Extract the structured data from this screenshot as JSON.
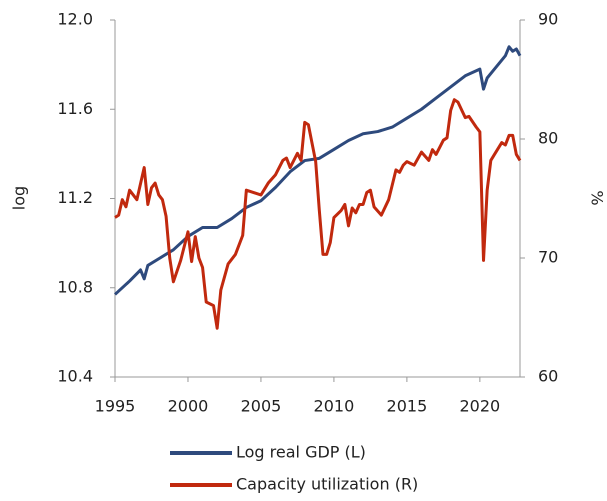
{
  "chart_data": {
    "type": "line",
    "y_label": "log",
    "y2_label": "%",
    "xlim": [
      1995,
      2022.75
    ],
    "xticks": [
      1995,
      2000,
      2005,
      2010,
      2015,
      2020
    ],
    "ylim": [
      10.4,
      12
    ],
    "yticks": [
      {
        "value": 10.4,
        "label": "10.4"
      },
      10.8,
      11.2,
      11.6,
      {
        "value": 12,
        "label": "12.0"
      }
    ],
    "y2lim": [
      60,
      90
    ],
    "y2ticks": [
      60,
      70,
      80,
      90
    ],
    "series": [
      {
        "name": "Log real GDP (L)",
        "color": "#2e4a7d",
        "axis": "y",
        "x": [
          1995,
          1996,
          1996.75,
          1997,
          1997.25,
          1998,
          1999,
          2000,
          2001,
          2002,
          2003,
          2004,
          2005,
          2006,
          2007,
          2008,
          2009,
          2010,
          2011,
          2012,
          2013,
          2014,
          2015,
          2016,
          2017,
          2018,
          2019,
          2020,
          2020.25,
          2020.5,
          2021,
          2021.75,
          2022,
          2022.25,
          2022.5,
          2022.75
        ],
        "values": [
          10.77,
          10.83,
          10.88,
          10.84,
          10.9,
          10.93,
          10.97,
          11.03,
          11.07,
          11.07,
          11.11,
          11.16,
          11.19,
          11.25,
          11.32,
          11.37,
          11.38,
          11.42,
          11.46,
          11.49,
          11.5,
          11.52,
          11.56,
          11.6,
          11.65,
          11.7,
          11.75,
          11.78,
          11.69,
          11.74,
          11.78,
          11.84,
          11.88,
          11.86,
          11.87,
          11.84
        ]
      },
      {
        "name": "Capacity utilization (R)",
        "color": "#c1290e",
        "axis": "y2",
        "x": [
          1995,
          1995.25,
          1995.5,
          1995.75,
          1996,
          1996.5,
          1997,
          1997.25,
          1997.5,
          1997.75,
          1998,
          1998.25,
          1998.5,
          1998.75,
          1999,
          1999.5,
          2000,
          2000.25,
          2000.5,
          2000.75,
          2001,
          2001.25,
          2001.75,
          2002,
          2002.25,
          2002.75,
          2003.25,
          2003.75,
          2004,
          2004.5,
          2005,
          2005.5,
          2006,
          2006.5,
          2006.75,
          2007,
          2007.5,
          2007.75,
          2008,
          2008.25,
          2008.75,
          2009,
          2009.25,
          2009.5,
          2009.75,
          2010,
          2010.5,
          2010.75,
          2011,
          2011.25,
          2011.5,
          2011.75,
          2012,
          2012.25,
          2012.5,
          2012.75,
          2013.25,
          2013.75,
          2014.25,
          2014.5,
          2014.75,
          2015,
          2015.5,
          2016,
          2016.5,
          2016.75,
          2017,
          2017.5,
          2017.75,
          2018,
          2018.25,
          2018.5,
          2019,
          2019.25,
          2019.75,
          2020,
          2020.25,
          2020.5,
          2020.75,
          2021,
          2021.5,
          2021.75,
          2022,
          2022.25,
          2022.5,
          2022.75
        ],
        "values": [
          73.4,
          73.6,
          74.9,
          74.3,
          75.7,
          74.9,
          77.6,
          74.5,
          75.9,
          76.3,
          75.3,
          74.9,
          73.5,
          70,
          68,
          69.8,
          72.2,
          69.7,
          71.8,
          70,
          69.2,
          66.3,
          66,
          64.1,
          67.3,
          69.5,
          70.3,
          71.9,
          75.7,
          75.5,
          75.3,
          76.3,
          77,
          78.2,
          78.4,
          77.6,
          78.8,
          78.2,
          81.4,
          81.2,
          78.1,
          74,
          70.3,
          70.3,
          71.3,
          73.4,
          74,
          74.5,
          72.7,
          74.2,
          73.8,
          74.5,
          74.5,
          75.5,
          75.7,
          74.3,
          73.6,
          74.9,
          77.4,
          77.2,
          77.8,
          78.1,
          77.8,
          78.9,
          78.2,
          79.1,
          78.7,
          79.9,
          80.1,
          82.4,
          83.3,
          83.1,
          81.8,
          81.9,
          81,
          80.6,
          69.8,
          75.7,
          78.2,
          78.7,
          79.7,
          79.5,
          80.3,
          80.3,
          78.7,
          78.2
        ]
      }
    ]
  }
}
